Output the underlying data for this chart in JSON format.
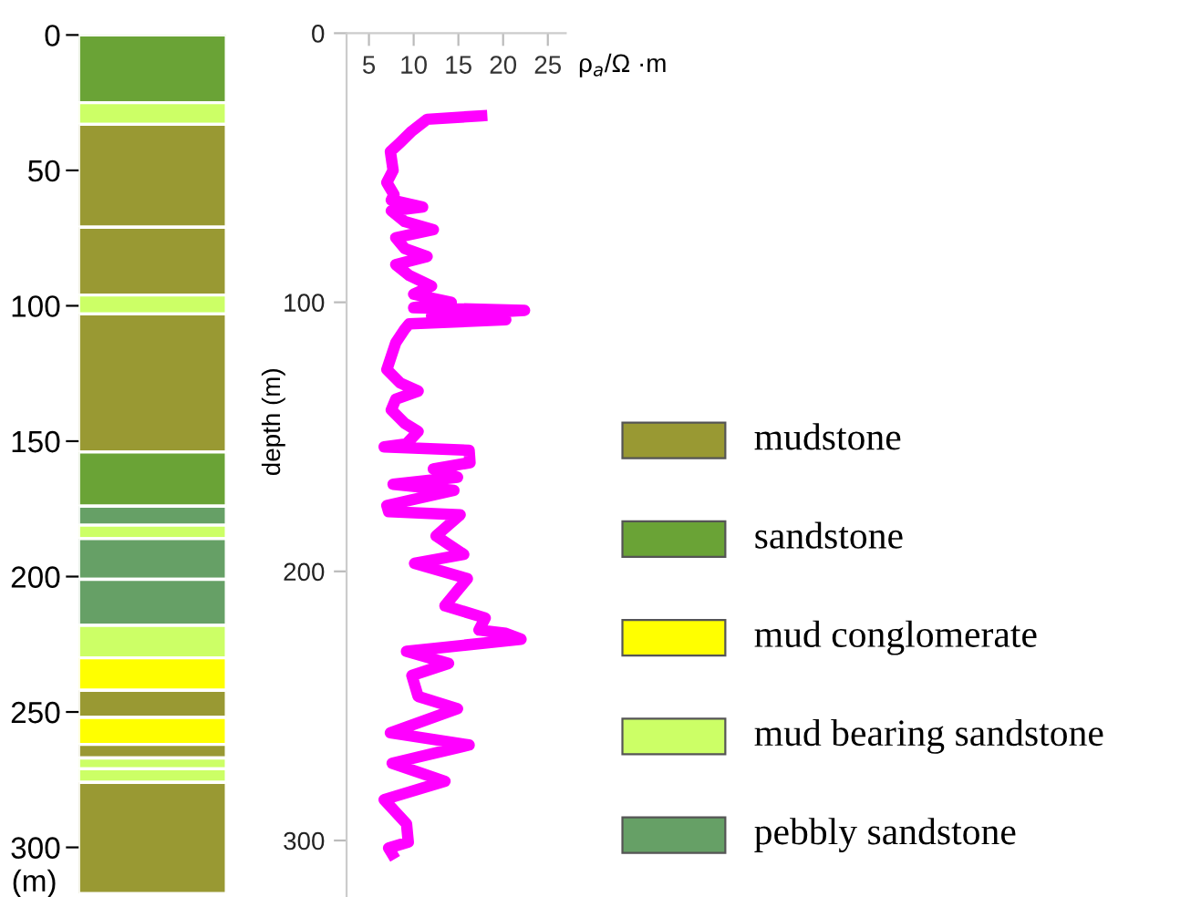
{
  "chart_data": [
    {
      "type": "bar",
      "stacked": true,
      "categories": [
        null
      ],
      "ylim": [
        317,
        0
      ],
      "yticks": [
        0,
        50,
        100,
        150,
        200,
        250,
        300
      ],
      "ylabel": "(m)",
      "tick_labels": "y",
      "series": [
        {
          "color": "#6aa336",
          "values": [
            25
          ]
        },
        {
          "color": "#ccff66",
          "values": [
            8
          ]
        },
        {
          "color": "#999933",
          "values": [
            38
          ]
        },
        {
          "color": "#999933",
          "values": [
            25
          ]
        },
        {
          "color": "#ccff66",
          "values": [
            7
          ]
        },
        {
          "color": "#999933",
          "values": [
            51
          ]
        },
        {
          "color": "#6aa336",
          "values": [
            20
          ]
        },
        {
          "color": "#66a066",
          "values": [
            7
          ]
        },
        {
          "color": "#ccff66",
          "values": [
            5
          ]
        },
        {
          "color": "#66a066",
          "values": [
            15
          ]
        },
        {
          "color": "#66a066",
          "values": [
            17
          ]
        },
        {
          "color": "#ccff66",
          "values": [
            12
          ]
        },
        {
          "color": "#ffff00",
          "values": [
            12
          ]
        },
        {
          "color": "#999933",
          "values": [
            10
          ]
        },
        {
          "color": "#ffff00",
          "values": [
            10
          ]
        },
        {
          "color": "#999933",
          "values": [
            5
          ]
        },
        {
          "color": "#ccff66",
          "values": [
            4
          ]
        },
        {
          "color": "#ccff66",
          "values": [
            5
          ]
        },
        {
          "color": "#999933",
          "values": [
            41
          ]
        }
      ]
    },
    {
      "type": "line",
      "xlabel": "ρ$_{a}$/Ω ·m",
      "ylabel": "depth (m)",
      "xlim": [
        2.5,
        27
      ],
      "xticks": [
        5,
        10,
        15,
        20,
        25
      ],
      "ylim": [
        321,
        0
      ],
      "yticks": [
        0,
        100,
        200,
        300
      ],
      "grid": false,
      "marker": "none",
      "line_style": "solid",
      "series": [
        {
          "color": "#ff00ff",
          "x": [
            17.6,
            11.5,
            9.8,
            8.4,
            7.4,
            7.7,
            7.0,
            7.8,
            7.5,
            11,
            7.5,
            9,
            12.2,
            8,
            9,
            11.5,
            8,
            9.5,
            12,
            10,
            14.2,
            10,
            22.4,
            12,
            20.3,
            9.5,
            9,
            8,
            7.5,
            7,
            8.5,
            10.5,
            8,
            7.5,
            9,
            10.5,
            9.2,
            6.7,
            16.2,
            16.3,
            12.2,
            14.9,
            7.7,
            14.5,
            7.0,
            7.2,
            15.2,
            12.5,
            15.6,
            10.1,
            16,
            13.5,
            18,
            17.3,
            20.3,
            22,
            9.2,
            13.9,
            9.8,
            10.5,
            14.9,
            7.4,
            16.2,
            7.6,
            13.5,
            6.7,
            9.2,
            9.4,
            7.2,
            7.6
          ],
          "values": [
            30.7,
            32,
            36.4,
            40.9,
            44,
            51,
            55.5,
            60,
            62,
            64.6,
            66,
            70,
            73,
            76,
            80,
            83,
            86,
            90,
            94,
            97,
            100,
            102,
            103,
            105,
            106.5,
            108,
            110,
            115,
            120,
            125,
            130,
            133,
            136,
            140,
            145,
            148,
            152.6,
            153.7,
            155,
            159.6,
            161.9,
            165,
            167.6,
            169.9,
            175.5,
            177.8,
            179,
            186.8,
            193.7,
            197,
            202.7,
            212.8,
            217.3,
            221.8,
            223,
            225.2,
            229.7,
            234.2,
            238.7,
            246.5,
            251,
            260,
            264.5,
            271.3,
            278,
            284.8,
            293.8,
            300.6,
            302.8,
            305
          ]
        }
      ]
    },
    {
      "type": "other",
      "categories": [
        "mudstone",
        "sandstone",
        "mud conglomerate",
        "mud bearing sandstone",
        "pebbly sandstone"
      ],
      "colors": [
        "#999933",
        "#6aa336",
        "#ffff00",
        "#ccff66",
        "#66a066"
      ]
    }
  ]
}
